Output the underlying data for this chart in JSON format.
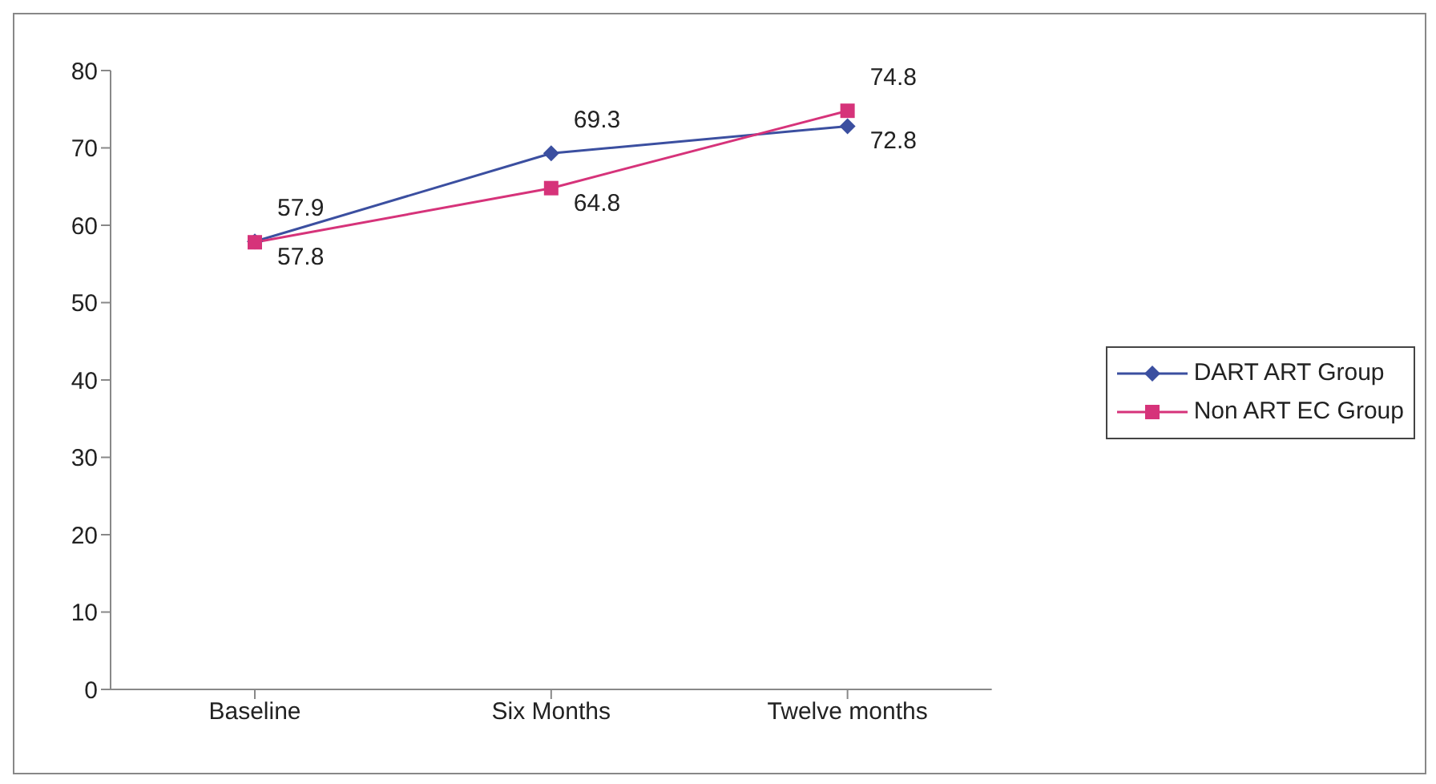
{
  "chart_data": {
    "type": "line",
    "categories": [
      "Baseline",
      "Six Months",
      "Twelve months"
    ],
    "series": [
      {
        "name": "DART ART Group",
        "color": "#3b4fa0",
        "values": [
          57.9,
          69.3,
          72.8
        ],
        "marker": "diamond"
      },
      {
        "name": "Non ART EC Group",
        "color": "#d6337a",
        "values": [
          57.8,
          64.8,
          74.8
        ],
        "marker": "square"
      }
    ],
    "ylim": [
      0,
      80
    ],
    "yticks": [
      0,
      10,
      20,
      30,
      40,
      50,
      60,
      70,
      80
    ],
    "grid": false,
    "legend": "right",
    "data_labels": true
  }
}
